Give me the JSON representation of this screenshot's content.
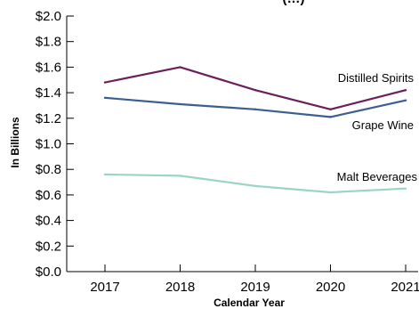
{
  "chart_data": {
    "type": "line",
    "title": "(…)",
    "xlabel": "Calendar Year",
    "ylabel": "In Billions",
    "x": [
      2017,
      2018,
      2019,
      2020,
      2021
    ],
    "x_ticks": [
      "2017",
      "2018",
      "2019",
      "2020",
      "2021"
    ],
    "ylim": [
      0,
      2.0
    ],
    "y_ticks": [
      "$0.0",
      "$0.2",
      "$0.4",
      "$0.6",
      "$0.8",
      "$1.0",
      "$1.2",
      "$1.4",
      "$1.6",
      "$1.8",
      "$2.0"
    ],
    "grid": false,
    "series": [
      {
        "name": "Distilled Spirits",
        "color": "#6b1f5c",
        "values": [
          1.48,
          1.6,
          1.42,
          1.27,
          1.42
        ]
      },
      {
        "name": "Grape Wine",
        "color": "#3b5f93",
        "values": [
          1.36,
          1.31,
          1.27,
          1.21,
          1.34
        ]
      },
      {
        "name": "Malt Beverages",
        "color": "#9dd4c8",
        "values": [
          0.76,
          0.75,
          0.67,
          0.62,
          0.65
        ]
      }
    ]
  }
}
